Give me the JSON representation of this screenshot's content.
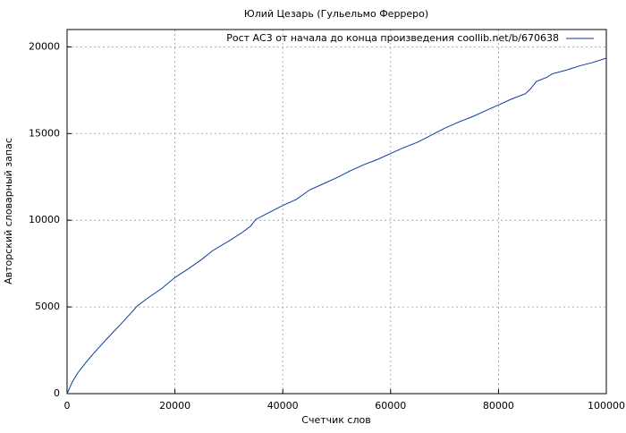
{
  "chart_data": {
    "type": "line",
    "title": "Юлий Цезарь (Гульельмо Ферреро)",
    "x_label": "Счетчик слов",
    "y_label": "Авторский словарный запас",
    "x": [
      0,
      1000,
      2000,
      3500,
      5000,
      7500,
      10000,
      12000,
      13000,
      15000,
      17500,
      20000,
      22500,
      25000,
      27000,
      30000,
      32500,
      34000,
      35000,
      37500,
      40000,
      42500,
      45000,
      47500,
      50000,
      52500,
      55000,
      57500,
      60000,
      62500,
      65000,
      67500,
      70000,
      72500,
      75000,
      77500,
      80000,
      82500,
      85000,
      86000,
      87000,
      89000,
      90000,
      92500,
      95000,
      97500,
      100000
    ],
    "series": [
      {
        "name": "Рост АС3 от начала до конца произведения coollib.net/b/670638",
        "color": "#0b3b9c",
        "values": [
          0,
          700,
          1200,
          1800,
          2350,
          3200,
          4020,
          4700,
          5050,
          5520,
          6050,
          6700,
          7200,
          7750,
          8250,
          8800,
          9300,
          9650,
          10050,
          10450,
          10850,
          11200,
          11750,
          12100,
          12450,
          12850,
          13200,
          13500,
          13850,
          14200,
          14500,
          14900,
          15300,
          15650,
          15950,
          16300,
          16650,
          17000,
          17300,
          17600,
          18000,
          18250,
          18450,
          18650,
          18900,
          19100,
          19350
        ]
      }
    ],
    "xlim": [
      0,
      100000
    ],
    "xticks": [
      0,
      20000,
      40000,
      60000,
      80000,
      100000
    ],
    "ylim": [
      0,
      21000
    ],
    "yticks": [
      0,
      5000,
      10000,
      15000,
      20000
    ],
    "grid": true,
    "legend": "top-right"
  }
}
